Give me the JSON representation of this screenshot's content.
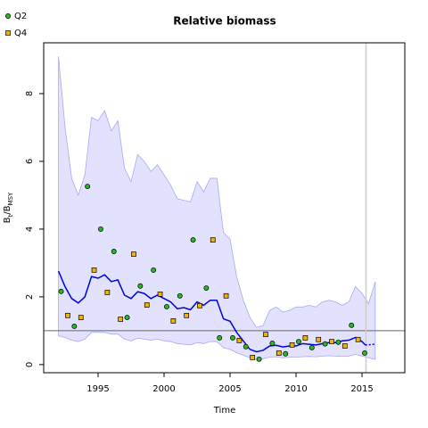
{
  "chart_data": {
    "type": "line",
    "title": "Relative biomass",
    "x_label": "Time",
    "y_label": [
      {
        "text": "B"
      },
      {
        "text": "t",
        "sub": true
      },
      {
        "text": "/B"
      },
      {
        "text": "MSY",
        "sub": true
      }
    ],
    "xlim": [
      1990.88,
      2018.24
    ],
    "ylim": [
      -0.24,
      9.5
    ],
    "xticks": [
      1995,
      2000,
      2005,
      2010,
      2015
    ],
    "yticks": [
      0,
      2,
      4,
      6,
      8
    ],
    "hline": 1,
    "vline": 2015.3,
    "band": {
      "color": "#e2e2ff",
      "edge": "#a8a8f0",
      "x": [
        1992,
        1992.5,
        1993,
        1993.5,
        1994,
        1994.5,
        1995,
        1995.5,
        1996,
        1996.5,
        1997,
        1997.5,
        1998,
        1998.5,
        1999,
        1999.5,
        2000,
        2000.5,
        2001,
        2001.5,
        2002,
        2002.5,
        2003,
        2003.5,
        2004,
        2004.5,
        2005,
        2005.5,
        2006,
        2006.5,
        2007,
        2007.5,
        2008,
        2008.5,
        2009,
        2009.5,
        2010,
        2010.5,
        2011,
        2011.5,
        2012,
        2012.5,
        2013,
        2013.5,
        2014,
        2014.5,
        2015,
        2015.5,
        2016
      ],
      "upper": [
        9.1,
        7.0,
        5.5,
        5.0,
        5.6,
        7.3,
        7.2,
        7.5,
        6.9,
        7.2,
        5.8,
        5.4,
        6.2,
        6.0,
        5.7,
        5.9,
        5.6,
        5.3,
        4.9,
        4.85,
        4.8,
        5.4,
        5.1,
        5.5,
        5.5,
        3.9,
        3.7,
        2.6,
        1.9,
        1.4,
        1.1,
        1.15,
        1.6,
        1.7,
        1.55,
        1.6,
        1.7,
        1.7,
        1.75,
        1.7,
        1.85,
        1.9,
        1.85,
        1.75,
        1.85,
        2.3,
        2.1,
        1.8,
        2.45
      ],
      "lower": [
        0.85,
        0.8,
        0.72,
        0.68,
        0.75,
        0.95,
        0.95,
        0.95,
        0.9,
        0.9,
        0.75,
        0.7,
        0.78,
        0.75,
        0.72,
        0.75,
        0.7,
        0.68,
        0.62,
        0.6,
        0.58,
        0.65,
        0.62,
        0.68,
        0.68,
        0.5,
        0.45,
        0.35,
        0.28,
        0.2,
        0.15,
        0.17,
        0.22,
        0.23,
        0.2,
        0.22,
        0.22,
        0.23,
        0.24,
        0.23,
        0.25,
        0.26,
        0.25,
        0.24,
        0.25,
        0.3,
        0.25,
        0.2,
        0.15
      ]
    },
    "median": {
      "color": "#0000dd",
      "x": [
        1992,
        1992.5,
        1993,
        1993.5,
        1994,
        1994.5,
        1995,
        1995.5,
        1996,
        1996.5,
        1997,
        1997.5,
        1998,
        1998.5,
        1999,
        1999.5,
        2000,
        2000.5,
        2001,
        2001.5,
        2002,
        2002.5,
        2003,
        2003.5,
        2004,
        2004.5,
        2005,
        2005.5,
        2006,
        2006.5,
        2007,
        2007.5,
        2008,
        2008.5,
        2009,
        2009.5,
        2010,
        2010.5,
        2011,
        2011.5,
        2012,
        2012.5,
        2013,
        2013.5,
        2014,
        2014.5,
        2015,
        2015.25
      ],
      "values": [
        2.76,
        2.3,
        1.95,
        1.82,
        2.0,
        2.6,
        2.55,
        2.65,
        2.45,
        2.5,
        2.05,
        1.95,
        2.15,
        2.1,
        1.95,
        2.05,
        1.95,
        1.85,
        1.65,
        1.68,
        1.62,
        1.85,
        1.75,
        1.9,
        1.9,
        1.35,
        1.28,
        0.95,
        0.7,
        0.45,
        0.38,
        0.42,
        0.55,
        0.57,
        0.52,
        0.55,
        0.55,
        0.62,
        0.6,
        0.58,
        0.62,
        0.65,
        0.65,
        0.7,
        0.72,
        0.8,
        0.68,
        0.58
      ]
    },
    "projection": {
      "color": "#0000dd",
      "x": [
        2015.25,
        2016
      ],
      "values": [
        0.58,
        0.6
      ]
    },
    "series": [
      {
        "name": "Q2",
        "color": "#22bb22",
        "marker": "circle",
        "x": [
          1992.2,
          1993.2,
          1994.2,
          1995.2,
          1996.2,
          1997.2,
          1998.2,
          1999.2,
          2000.2,
          2001.2,
          2002.2,
          2003.2,
          2004.2,
          2005.2,
          2006.2,
          2007.2,
          2008.2,
          2009.2,
          2010.2,
          2011.2,
          2012.2,
          2013.2,
          2014.2,
          2015.2
        ],
        "values": [
          2.16,
          1.13,
          5.26,
          4.0,
          3.34,
          1.39,
          2.32,
          2.79,
          1.71,
          2.03,
          3.68,
          2.26,
          0.79,
          0.79,
          0.53,
          0.16,
          0.63,
          0.32,
          0.68,
          0.5,
          0.61,
          0.66,
          1.16,
          0.34
        ]
      },
      {
        "name": "Q4",
        "color": "#f0b400",
        "marker": "square",
        "x": [
          1992.7,
          1993.7,
          1994.7,
          1995.7,
          1996.7,
          1997.7,
          1998.7,
          1999.7,
          2000.7,
          2001.7,
          2002.7,
          2003.7,
          2004.7,
          2005.7,
          2006.7,
          2007.7,
          2008.7,
          2009.7,
          2010.7,
          2011.7,
          2012.7,
          2013.7,
          2014.7
        ],
        "values": [
          1.45,
          1.39,
          2.79,
          2.13,
          1.34,
          3.26,
          1.76,
          2.08,
          1.29,
          1.45,
          1.74,
          3.68,
          2.03,
          0.71,
          0.21,
          0.89,
          0.34,
          0.58,
          0.79,
          0.74,
          0.68,
          0.55,
          0.74
        ]
      }
    ]
  }
}
